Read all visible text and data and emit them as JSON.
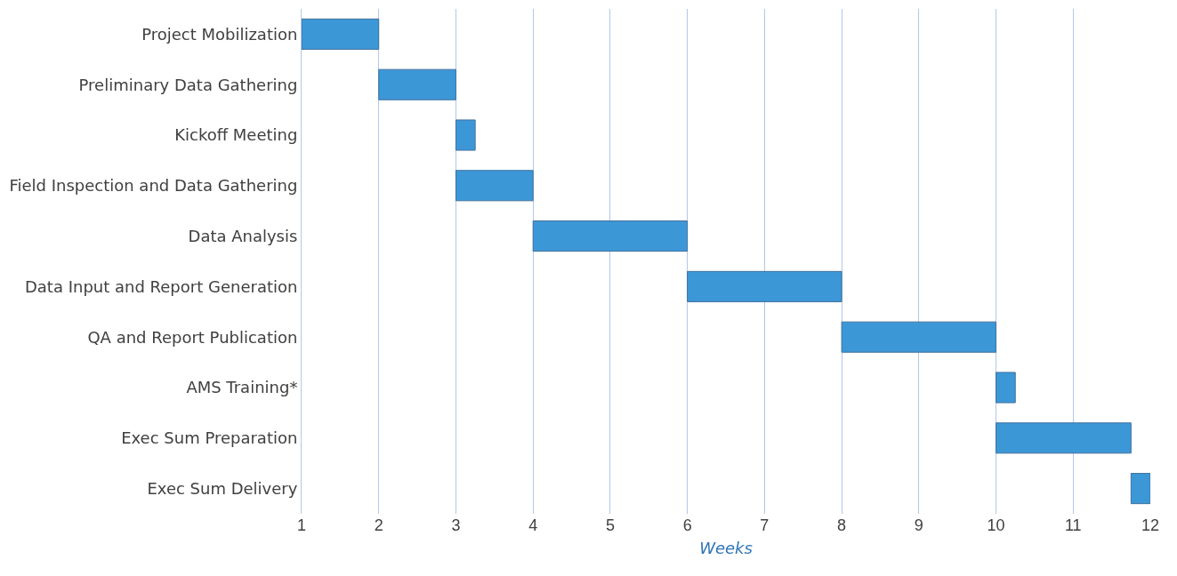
{
  "chart_data": {
    "type": "bar",
    "orientation": "horizontal",
    "xlabel": "Weeks",
    "categories": [
      "Project Mobilization",
      "Preliminary Data Gathering",
      "Kickoff Meeting",
      "Field Inspection and Data Gathering",
      "Data Analysis",
      "Data Input and Report Generation",
      "QA and Report Publication",
      "AMS Training*",
      "Exec Sum Preparation",
      "Exec Sum Delivery"
    ],
    "base": [
      1,
      2,
      3,
      3,
      4,
      6,
      8,
      10,
      10,
      11.75
    ],
    "values": [
      1,
      1,
      0.25,
      1,
      2,
      2,
      2,
      0.25,
      1.75,
      0.25
    ],
    "color": "#3c97d7",
    "xlim": [
      1,
      12
    ],
    "xticks": [
      1,
      2,
      3,
      4,
      5,
      6,
      7,
      8,
      9,
      10,
      11,
      12
    ],
    "grid": "x",
    "legend": false
  }
}
